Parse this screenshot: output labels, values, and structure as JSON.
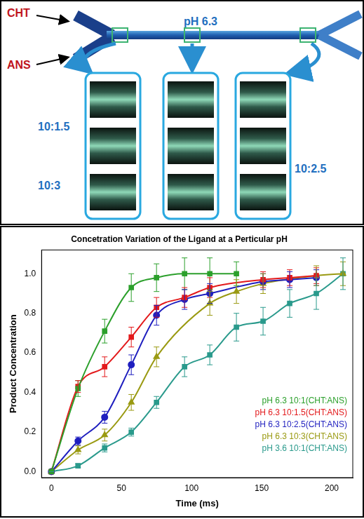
{
  "diagram": {
    "inlets": [
      "CHT",
      "ANS"
    ],
    "channel_label": "pH 6.3",
    "ratio_labels": [
      "10:1.5",
      "10:3",
      "10:2.5"
    ]
  },
  "chart_data": {
    "type": "scatter",
    "title": "Concetration Variation of the Ligand at a Perticular pH",
    "x_label": "Time (ms)",
    "y_label": "Product Concentration",
    "xlim": [
      -7,
      215
    ],
    "xticks": [
      0,
      50,
      100,
      150,
      200
    ],
    "ylim": [
      -0.03,
      1.12
    ],
    "yticks": [
      {
        "value": 0,
        "label": "0.0"
      },
      0.2,
      0.4,
      0.6,
      0.8,
      {
        "value": 1,
        "label": "1.0"
      }
    ],
    "grid": false,
    "legend": "lower right",
    "series": [
      {
        "name": "pH 6.3 10:1(CHT:ANS)",
        "color": "#2ca02c",
        "marker": "square",
        "line_style": "solid",
        "x": [
          0,
          19,
          38,
          57,
          75,
          95,
          113,
          132
        ],
        "values": [
          0,
          0.42,
          0.71,
          0.93,
          0.98,
          1.0,
          1.0,
          1.0
        ],
        "errors": [
          0,
          0.04,
          0.06,
          0.07,
          0.07,
          0.08,
          0.08,
          0.06
        ]
      },
      {
        "name": "pH 6.3 10:1.5(CHT:ANS)",
        "color": "#e31a1c",
        "marker": "square",
        "line_style": "solid",
        "x": [
          0,
          19,
          38,
          57,
          75,
          95,
          113,
          151,
          170,
          189
        ],
        "values": [
          0,
          0.43,
          0.53,
          0.68,
          0.83,
          0.88,
          0.93,
          0.97,
          0.98,
          0.99
        ],
        "errors": [
          0,
          0.03,
          0.05,
          0.05,
          0.05,
          0.05,
          0.05,
          0.04,
          0.04,
          0.04
        ]
      },
      {
        "name": "pH 6.3 10:2.5(CHT:ANS)",
        "color": "#1f1fbf",
        "marker": "circle",
        "line_style": "solid",
        "x": [
          0,
          19,
          38,
          57,
          75,
          95,
          113,
          151,
          170,
          189
        ],
        "values": [
          0,
          0.155,
          0.275,
          0.54,
          0.79,
          0.87,
          0.9,
          0.96,
          0.97,
          0.98
        ],
        "errors": [
          0,
          0.02,
          0.03,
          0.05,
          0.05,
          0.05,
          0.05,
          0.04,
          0.04,
          0.04
        ]
      },
      {
        "name": "pH 6.3 10:3(CHT:ANS)",
        "color": "#9a9a12",
        "marker": "triangle",
        "line_style": "solid",
        "x": [
          0,
          19,
          38,
          57,
          75,
          113,
          132,
          151,
          189,
          208
        ],
        "values": [
          0,
          0.11,
          0.185,
          0.35,
          0.58,
          0.85,
          0.91,
          0.95,
          0.99,
          1.0
        ],
        "errors": [
          0,
          0.02,
          0.03,
          0.04,
          0.05,
          0.06,
          0.06,
          0.05,
          0.05,
          0.06
        ]
      },
      {
        "name": "pH 3.6 10:1(CHT:ANS)",
        "color": "#2a9a8c",
        "marker": "square",
        "line_style": "solid",
        "x": [
          0,
          19,
          38,
          57,
          75,
          95,
          113,
          132,
          151,
          170,
          189,
          208
        ],
        "values": [
          0,
          0.03,
          0.12,
          0.2,
          0.35,
          0.53,
          0.59,
          0.73,
          0.76,
          0.85,
          0.9,
          1.0
        ],
        "errors": [
          0,
          0.01,
          0.02,
          0.02,
          0.03,
          0.05,
          0.05,
          0.07,
          0.07,
          0.07,
          0.08,
          0.08
        ]
      }
    ]
  }
}
